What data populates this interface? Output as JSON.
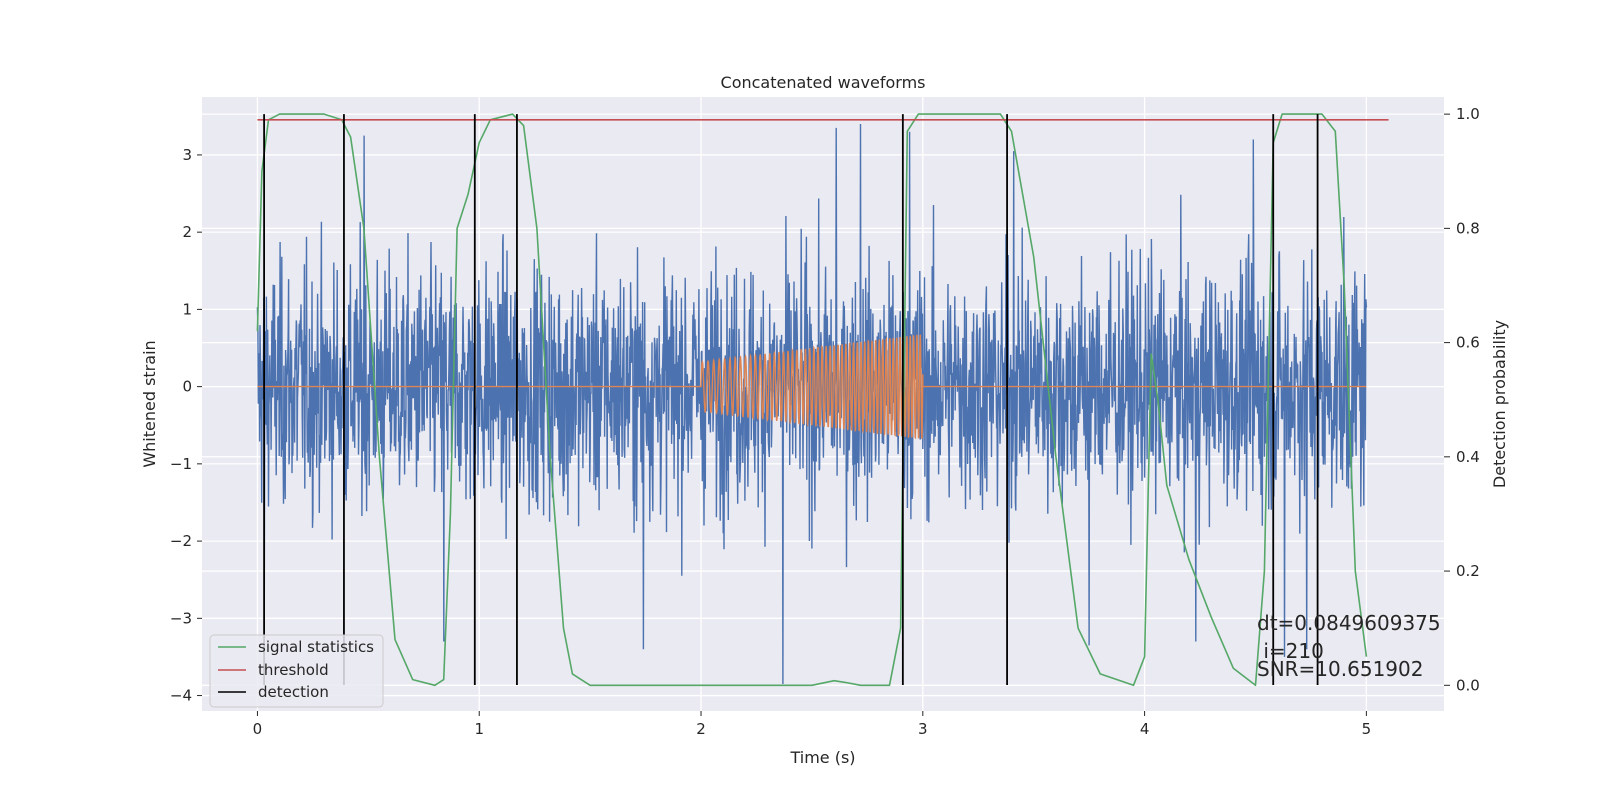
{
  "chart_data": {
    "type": "line",
    "title": "Concatenated waveforms",
    "xlabel": "Time (s)",
    "ylabel": "Whitened strain",
    "y2label": "Detection probability",
    "xlim": [
      -0.25,
      5.35
    ],
    "ylim": [
      -4.2,
      3.75
    ],
    "y2lim": [
      -0.045,
      1.03
    ],
    "xticks": [
      0,
      1,
      2,
      3,
      4,
      5
    ],
    "yticks": [
      -4,
      -3,
      -2,
      -1,
      0,
      1,
      2,
      3
    ],
    "y2ticks": [
      0.0,
      0.2,
      0.4,
      0.6,
      0.8,
      1.0
    ],
    "xtick_labels": [
      "0",
      "1",
      "2",
      "3",
      "4",
      "5"
    ],
    "ytick_labels": [
      "−4",
      "−3",
      "−2",
      "−1",
      "0",
      "1",
      "2",
      "3"
    ],
    "y2tick_labels": [
      "0.0",
      "0.2",
      "0.4",
      "0.6",
      "0.8",
      "1.0"
    ],
    "grid": true,
    "legend_position": "lower-left",
    "series": [
      {
        "role": "noise",
        "color": "#4c72b0",
        "axis": "left",
        "x_range": [
          0,
          5
        ],
        "amplitude_typical": 1.6,
        "peak_samples": [
          {
            "x": 0.03,
            "y": -2.7
          },
          {
            "x": 0.48,
            "y": 3.25
          },
          {
            "x": 0.84,
            "y": -3.3
          },
          {
            "x": 1.74,
            "y": -3.4
          },
          {
            "x": 2.37,
            "y": -3.85
          },
          {
            "x": 2.61,
            "y": 3.35
          },
          {
            "x": 2.72,
            "y": 3.4
          },
          {
            "x": 2.94,
            "y": 3.3
          },
          {
            "x": 3.41,
            "y": 3.05
          },
          {
            "x": 3.75,
            "y": -3.35
          },
          {
            "x": 4.23,
            "y": -3.3
          },
          {
            "x": 4.49,
            "y": 3.2
          },
          {
            "x": 4.63,
            "y": -3.5
          },
          {
            "x": 4.73,
            "y": -3.4
          }
        ]
      },
      {
        "role": "waveform",
        "color": "#dd8452",
        "axis": "left",
        "flat_before": 2.0,
        "chirp_start": 2.0,
        "chirp_end": 3.0,
        "amplitude_start": 0.32,
        "amplitude_end": 0.68,
        "freq_start_hz": 38,
        "freq_end_hz": 68
      },
      {
        "name": "signal statistics",
        "color": "#55a868",
        "axis": "right",
        "x": [
          0.0,
          0.02,
          0.05,
          0.1,
          0.3,
          0.38,
          0.42,
          0.48,
          0.55,
          0.62,
          0.7,
          0.8,
          0.84,
          0.87,
          0.9,
          0.95,
          1.0,
          1.05,
          1.15,
          1.2,
          1.26,
          1.32,
          1.38,
          1.42,
          1.5,
          2.0,
          2.35,
          2.5,
          2.6,
          2.65,
          2.72,
          2.85,
          2.9,
          2.93,
          2.98,
          3.1,
          3.35,
          3.4,
          3.5,
          3.6,
          3.7,
          3.8,
          3.95,
          4.0,
          4.03,
          4.06,
          4.1,
          4.2,
          4.3,
          4.4,
          4.5,
          4.54,
          4.58,
          4.62,
          4.7,
          4.8,
          4.86,
          4.9,
          4.95,
          5.0
        ],
        "values": [
          0.62,
          0.9,
          0.99,
          1.0,
          1.0,
          0.99,
          0.96,
          0.8,
          0.4,
          0.08,
          0.01,
          0.0,
          0.01,
          0.3,
          0.8,
          0.86,
          0.95,
          0.99,
          1.0,
          0.98,
          0.8,
          0.4,
          0.1,
          0.02,
          0.0,
          0.0,
          0.0,
          0.0,
          0.008,
          0.005,
          0.0,
          0.0,
          0.1,
          0.97,
          1.0,
          1.0,
          1.0,
          0.97,
          0.75,
          0.4,
          0.1,
          0.02,
          0.0,
          0.05,
          0.58,
          0.5,
          0.35,
          0.22,
          0.12,
          0.03,
          0.0,
          0.2,
          0.95,
          1.0,
          1.0,
          1.0,
          0.97,
          0.7,
          0.2,
          0.05
        ]
      },
      {
        "name": "threshold",
        "color": "#c44e52",
        "axis": "right",
        "x": [
          0,
          5.1
        ],
        "values": [
          0.99,
          0.99
        ]
      },
      {
        "name": "detection",
        "color": "#000000",
        "type": "vlines",
        "x": [
          0.03,
          0.39,
          0.98,
          1.17,
          2.91,
          3.38,
          4.58,
          4.78
        ],
        "y_range": [
          -0.045,
          1.0
        ]
      }
    ],
    "annotations": [
      "dt=0.0849609375",
      " i=210",
      "SNR=10.651902"
    ]
  }
}
